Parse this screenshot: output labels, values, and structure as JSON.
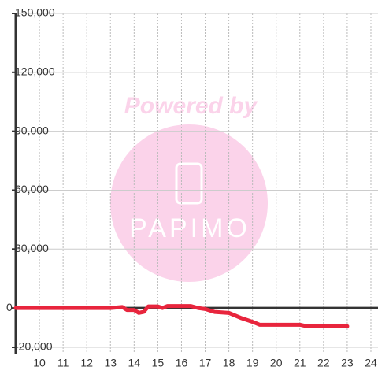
{
  "chart_data": {
    "type": "line",
    "watermark": {
      "text": "Powered by",
      "logo": "PAPIMO"
    },
    "x": [
      9,
      13,
      13.5,
      13.7,
      14,
      14.2,
      14.4,
      14.6,
      15,
      15.2,
      15.4,
      16,
      16.4,
      16.7,
      17,
      17.4,
      18,
      18.5,
      19,
      19.3,
      20,
      21,
      21.3,
      23
    ],
    "series": [
      {
        "name": null,
        "color": "#e8253d",
        "values": [
          0,
          0,
          500,
          -1000,
          -1000,
          -2500,
          -2000,
          800,
          800,
          0,
          1000,
          1000,
          1000,
          0,
          -500,
          -2000,
          -2500,
          -5000,
          -7000,
          -8500,
          -8500,
          -8500,
          -9300,
          -9300
        ]
      }
    ],
    "xlim": [
      9,
      24.3
    ],
    "xticks": [
      10,
      11,
      12,
      13,
      14,
      15,
      16,
      17,
      18,
      19,
      20,
      21,
      22,
      23,
      24
    ],
    "ylim": [
      -20000,
      150000
    ],
    "yticks": [
      {
        "value": -20000,
        "label": "-20,000"
      },
      0,
      {
        "value": 30000,
        "label": "30,000"
      },
      {
        "value": 60000,
        "label": "60,000"
      },
      {
        "value": 90000,
        "label": "90,000"
      },
      {
        "value": 120000,
        "label": "120,000"
      },
      {
        "value": 150000,
        "label": "150,000"
      }
    ],
    "grid": true
  }
}
